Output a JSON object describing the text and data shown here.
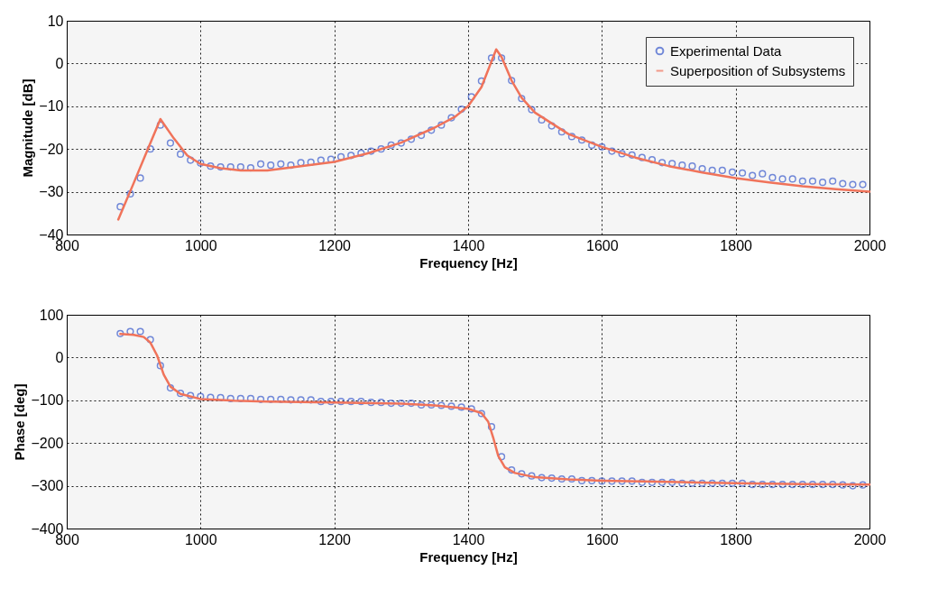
{
  "chart_data": [
    {
      "type": "scatter",
      "xlabel": "Frequency [Hz]",
      "ylabel": "Magnitude [dB]",
      "xlim": [
        800,
        2000
      ],
      "xticks": [
        800,
        1000,
        1200,
        1400,
        1600,
        1800,
        2000
      ],
      "ylim": [
        -40,
        10
      ],
      "yticks": [
        -40,
        -30,
        -20,
        -10,
        0,
        10
      ],
      "grid": true,
      "legend": "top right",
      "series": [
        {
          "name": "Experimental Data",
          "marker": "circle",
          "color": "#3a5bcc",
          "x": [
            880,
            895,
            910,
            925,
            940,
            955,
            970,
            985,
            1000,
            1015,
            1030,
            1045,
            1060,
            1075,
            1090,
            1105,
            1120,
            1135,
            1150,
            1165,
            1180,
            1195,
            1210,
            1225,
            1240,
            1255,
            1270,
            1285,
            1300,
            1315,
            1330,
            1345,
            1360,
            1375,
            1390,
            1405,
            1420,
            1435,
            1450,
            1465,
            1480,
            1495,
            1510,
            1525,
            1540,
            1555,
            1570,
            1585,
            1600,
            1615,
            1630,
            1645,
            1660,
            1675,
            1690,
            1705,
            1720,
            1735,
            1750,
            1765,
            1780,
            1795,
            1810,
            1825,
            1840,
            1855,
            1870,
            1885,
            1900,
            1915,
            1930,
            1945,
            1960,
            1975,
            1990
          ],
          "values": [
            -33.5,
            -30.5,
            -26.8,
            -20,
            -14.4,
            -18.6,
            -21.2,
            -22.6,
            -23.3,
            -24,
            -24.2,
            -24.2,
            -24.2,
            -24.4,
            -23.5,
            -23.8,
            -23.5,
            -23.8,
            -23.2,
            -23.1,
            -22.6,
            -22.4,
            -21.8,
            -21.5,
            -21,
            -20.5,
            -20,
            -19.1,
            -18.6,
            -17.7,
            -16.8,
            -15.6,
            -14.4,
            -12.7,
            -10.7,
            -7.8,
            -4.1,
            1.3,
            1.3,
            -4,
            -8.2,
            -10.8,
            -13.2,
            -14.6,
            -16,
            -17.1,
            -17.9,
            -19.1,
            -19.5,
            -20.5,
            -21.1,
            -21.4,
            -22,
            -22.5,
            -23.2,
            -23.4,
            -23.8,
            -24,
            -24.6,
            -25,
            -25,
            -25.4,
            -25.6,
            -26.2,
            -25.8,
            -26.7,
            -27,
            -27,
            -27.5,
            -27.5,
            -27.8,
            -27.5,
            -28.1,
            -28.3,
            -28.3
          ]
        },
        {
          "name": "Superposition of Subsystems",
          "type": "line",
          "line_style": "solid",
          "color": "#f0735a",
          "x": [
            877,
            900,
            920,
            940,
            960,
            980,
            1000,
            1030,
            1060,
            1100,
            1150,
            1200,
            1250,
            1300,
            1350,
            1380,
            1400,
            1420,
            1435,
            1442,
            1450,
            1465,
            1480,
            1500,
            1550,
            1600,
            1650,
            1700,
            1750,
            1800,
            1850,
            1900,
            1950,
            2000
          ],
          "values": [
            -36.5,
            -28,
            -20.5,
            -13,
            -17.5,
            -21.5,
            -23.5,
            -24.5,
            -25,
            -25,
            -24,
            -23,
            -21,
            -18.5,
            -15,
            -12.5,
            -10,
            -5.5,
            0.5,
            3.3,
            1.5,
            -4,
            -8,
            -11.5,
            -16.5,
            -19.5,
            -22,
            -24,
            -25.5,
            -26.8,
            -27.8,
            -28.7,
            -29.4,
            -30
          ]
        }
      ]
    },
    {
      "type": "scatter",
      "xlabel": "Frequency [Hz]",
      "ylabel": "Phase [deg]",
      "xlim": [
        800,
        2000
      ],
      "xticks": [
        800,
        1000,
        1200,
        1400,
        1600,
        1800,
        2000
      ],
      "ylim": [
        -400,
        100
      ],
      "yticks": [
        -400,
        -300,
        -200,
        -100,
        0,
        100
      ],
      "grid": true,
      "series": [
        {
          "marker": "circle",
          "color": "#3a5bcc",
          "x": [
            880,
            895,
            910,
            925,
            940,
            955,
            970,
            985,
            1000,
            1015,
            1030,
            1045,
            1060,
            1075,
            1090,
            1105,
            1120,
            1135,
            1150,
            1165,
            1180,
            1195,
            1210,
            1225,
            1240,
            1255,
            1270,
            1285,
            1300,
            1315,
            1330,
            1345,
            1360,
            1375,
            1390,
            1405,
            1420,
            1435,
            1450,
            1465,
            1480,
            1495,
            1510,
            1525,
            1540,
            1555,
            1570,
            1585,
            1600,
            1615,
            1630,
            1645,
            1660,
            1675,
            1690,
            1705,
            1720,
            1735,
            1750,
            1765,
            1780,
            1795,
            1810,
            1825,
            1840,
            1855,
            1870,
            1885,
            1900,
            1915,
            1930,
            1945,
            1960,
            1975,
            1990
          ],
          "values": [
            56,
            61,
            61,
            42,
            -19,
            -71,
            -84,
            -89,
            -91,
            -93,
            -94,
            -96,
            -96,
            -96,
            -98,
            -98,
            -98,
            -99,
            -99,
            -99,
            -103,
            -103,
            -103,
            -103,
            -103,
            -105,
            -105,
            -107,
            -107,
            -107,
            -111,
            -111,
            -112,
            -114,
            -116,
            -120,
            -131,
            -162,
            -232,
            -263,
            -272,
            -277,
            -281,
            -282,
            -284,
            -284,
            -288,
            -288,
            -289,
            -289,
            -289,
            -289,
            -292,
            -292,
            -292,
            -292,
            -294,
            -294,
            -294,
            -294,
            -294,
            -294,
            -294,
            -297,
            -297,
            -297,
            -297,
            -297,
            -297,
            -297,
            -297,
            -297,
            -298,
            -300,
            -298
          ]
        },
        {
          "type": "line",
          "line_style": "solid",
          "color": "#f0735a",
          "x": [
            880,
            900,
            915,
            925,
            935,
            945,
            955,
            970,
            1000,
            1050,
            1100,
            1200,
            1300,
            1350,
            1400,
            1420,
            1430,
            1438,
            1445,
            1455,
            1470,
            1500,
            1550,
            1600,
            1700,
            1800,
            1900,
            2000
          ],
          "values": [
            55,
            53,
            48,
            35,
            5,
            -40,
            -68,
            -85,
            -97,
            -101,
            -103,
            -105,
            -108,
            -112,
            -120,
            -130,
            -150,
            -190,
            -230,
            -257,
            -270,
            -280,
            -285,
            -288,
            -291,
            -294,
            -296,
            -297
          ]
        }
      ]
    }
  ]
}
